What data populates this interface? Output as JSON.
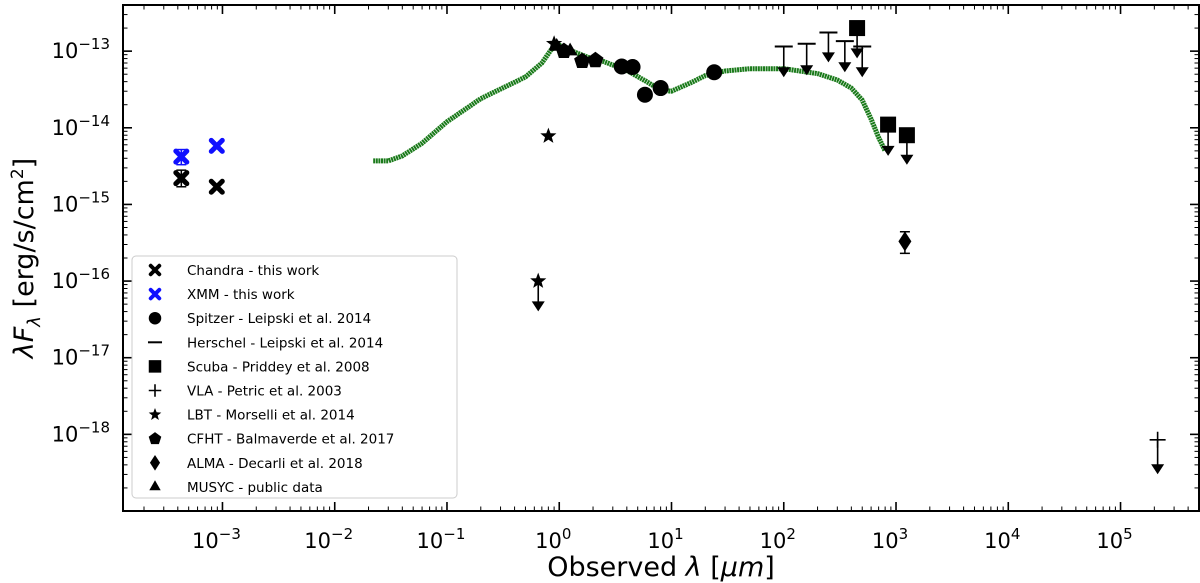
{
  "chart_data": {
    "type": "scatter",
    "xlabel": "Observed λ [μm]",
    "ylabel": "λF_λ [erg/s/cm²]",
    "xscale": "log",
    "yscale": "log",
    "xlim": [
      0.00013,
      500000
    ],
    "ylim": [
      1e-19,
      4e-13
    ],
    "x_ticks": [
      {
        "value": 0.001,
        "base": "10",
        "exp": "−3"
      },
      {
        "value": 0.01,
        "base": "10",
        "exp": "−2"
      },
      {
        "value": 0.1,
        "base": "10",
        "exp": "−1"
      },
      {
        "value": 1,
        "base": "10",
        "exp": "0"
      },
      {
        "value": 10,
        "base": "10",
        "exp": "1"
      },
      {
        "value": 100,
        "base": "10",
        "exp": "2"
      },
      {
        "value": 1000,
        "base": "10",
        "exp": "3"
      },
      {
        "value": 10000,
        "base": "10",
        "exp": "4"
      },
      {
        "value": 100000,
        "base": "10",
        "exp": "5"
      }
    ],
    "y_ticks": [
      {
        "value": 1e-13,
        "base": "10",
        "exp": "−13"
      },
      {
        "value": 1e-14,
        "base": "10",
        "exp": "−14"
      },
      {
        "value": 1e-15,
        "base": "10",
        "exp": "−15"
      },
      {
        "value": 1e-16,
        "base": "10",
        "exp": "−16"
      },
      {
        "value": 1e-17,
        "base": "10",
        "exp": "−17"
      },
      {
        "value": 1e-18,
        "base": "10",
        "exp": "−18"
      }
    ],
    "legend_position": "lower-left",
    "model_curve": {
      "color": "#1a7a1a",
      "points": [
        [
          0.022,
          3.7e-15
        ],
        [
          0.03,
          3.7e-15
        ],
        [
          0.04,
          4.3e-15
        ],
        [
          0.06,
          6.3e-15
        ],
        [
          0.1,
          1.2e-14
        ],
        [
          0.15,
          1.8e-14
        ],
        [
          0.2,
          2.4e-14
        ],
        [
          0.3,
          3.2e-14
        ],
        [
          0.5,
          4.6e-14
        ],
        [
          0.7,
          7e-14
        ],
        [
          0.85,
          1.05e-13
        ],
        [
          1.0,
          1.2e-13
        ],
        [
          1.3,
          1e-13
        ],
        [
          1.8,
          8.3e-14
        ],
        [
          2.5,
          7.3e-14
        ],
        [
          4,
          5.6e-14
        ],
        [
          6,
          4e-14
        ],
        [
          8,
          3.1e-14
        ],
        [
          10,
          3e-14
        ],
        [
          15,
          3.9e-14
        ],
        [
          20,
          4.8e-14
        ],
        [
          30,
          5.5e-14
        ],
        [
          50,
          5.9e-14
        ],
        [
          100,
          5.9e-14
        ],
        [
          200,
          5.1e-14
        ],
        [
          300,
          4.2e-14
        ],
        [
          400,
          3.3e-14
        ],
        [
          500,
          2.3e-14
        ],
        [
          600,
          1.3e-14
        ],
        [
          700,
          7.5e-15
        ],
        [
          800,
          5e-15
        ]
      ]
    },
    "series": [
      {
        "name": "Chandra - this work",
        "marker": "x",
        "color": "#000000",
        "points": [
          {
            "x": 0.00043,
            "y": 2.2e-15,
            "yerr": [
              1.7e-15,
              2.8e-15
            ]
          },
          {
            "x": 0.00089,
            "y": 1.7e-15
          }
        ]
      },
      {
        "name": "XMM - this work",
        "marker": "x",
        "color": "#1010ff",
        "points": [
          {
            "x": 0.00043,
            "y": 4.2e-15,
            "yerr": [
              3.3e-15,
              5.2e-15
            ]
          },
          {
            "x": 0.00089,
            "y": 5.8e-15
          }
        ]
      },
      {
        "name": "Spitzer - Leipski et al. 2014",
        "marker": "circle",
        "color": "#000000",
        "points": [
          {
            "x": 3.6,
            "y": 6.3e-14
          },
          {
            "x": 4.5,
            "y": 6.2e-14
          },
          {
            "x": 5.8,
            "y": 2.7e-14
          },
          {
            "x": 8.0,
            "y": 3.3e-14
          },
          {
            "x": 24,
            "y": 5.3e-14
          }
        ]
      },
      {
        "name": "Herschel - Leipski et al. 2014",
        "marker": "hline",
        "color": "#000000",
        "points": [
          {
            "x": 100,
            "y": 1.15e-13,
            "upper": true,
            "arrow_to": 5e-14
          },
          {
            "x": 160,
            "y": 1.25e-13,
            "upper": true,
            "arrow_to": 5.3e-14
          },
          {
            "x": 250,
            "y": 1.75e-13,
            "upper": true,
            "arrow_to": 7.8e-14
          },
          {
            "x": 350,
            "y": 1.35e-13,
            "upper": true,
            "arrow_to": 5.8e-14
          },
          {
            "x": 500,
            "y": 1.15e-13,
            "upper": true,
            "arrow_to": 5e-14
          }
        ]
      },
      {
        "name": "Scuba - Priddey et al. 2008",
        "marker": "square",
        "color": "#000000",
        "points": [
          {
            "x": 450,
            "y": 2e-13,
            "upper": true,
            "arrow_to": 8.8e-14
          },
          {
            "x": 850,
            "y": 1.1e-14,
            "upper": true,
            "arrow_to": 4.7e-15
          },
          {
            "x": 1250,
            "y": 8e-15,
            "upper": true,
            "arrow_to": 3.6e-15
          }
        ]
      },
      {
        "name": "VLA - Petric et al. 2003",
        "marker": "plus",
        "color": "#000000",
        "points": [
          {
            "x": 214000,
            "y": 8.5e-19,
            "upper": true,
            "arrow_to": 3.3e-19
          }
        ]
      },
      {
        "name": "LBT - Morselli et al. 2014",
        "marker": "star",
        "color": "#000000",
        "points": [
          {
            "x": 0.65,
            "y": 1e-16,
            "upper": true,
            "arrow_to": 4.4e-17
          },
          {
            "x": 0.8,
            "y": 7.8e-15
          },
          {
            "x": 0.9,
            "y": 1.25e-13
          }
        ]
      },
      {
        "name": "CFHT - Balmaverde et al. 2017",
        "marker": "pentagon",
        "color": "#000000",
        "points": [
          {
            "x": 1.1,
            "y": 1e-13
          },
          {
            "x": 1.6,
            "y": 7.4e-14
          },
          {
            "x": 2.1,
            "y": 7.6e-14
          }
        ]
      },
      {
        "name": "ALMA - Decarli et al. 2018",
        "marker": "diamond",
        "color": "#000000",
        "points": [
          {
            "x": 1200,
            "y": 3.3e-16,
            "yerr": [
              2.3e-16,
              4.4e-16
            ]
          }
        ]
      },
      {
        "name": "MUSYC - public data",
        "marker": "triangle",
        "color": "#000000",
        "points": [
          {
            "x": 0.95,
            "y": 1.15e-13
          },
          {
            "x": 1.25,
            "y": 1e-13
          }
        ]
      }
    ]
  }
}
